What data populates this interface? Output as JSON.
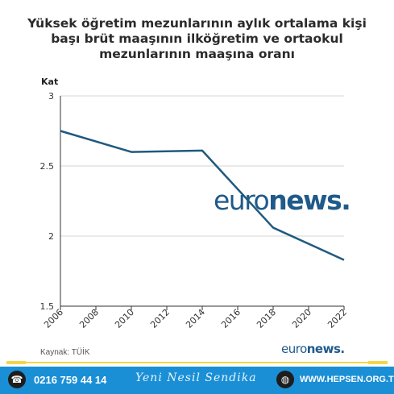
{
  "title_lines": [
    "Yüksek öğretim mezunlarının aylık ortalama kişi",
    "başı brüt maaşının ilköğretim ve ortaokul",
    "mezunlarının maaşına oranı"
  ],
  "source": "Kaynak: TÜİK",
  "watermark": {
    "euro": "euro",
    "news": "news",
    "dot": "."
  },
  "footer": {
    "phone": "0216 759 44 14",
    "slogan": "Yeni Nesil Sendika",
    "website": "WWW.HEPSEN.ORG.TR",
    "phone_icon": "phone-icon",
    "web_icon": "globe-icon"
  },
  "colors": {
    "line": "#1f5a7f",
    "footer_bg": "#1a8fd6",
    "accent": "#f3d64c",
    "brand": "#1f5a8a"
  },
  "chart_data": {
    "type": "line",
    "title": "Yüksek öğretim mezunlarının aylık ortalama kişi başı brüt maaşının ilköğretim ve ortaokul mezunlarının maaşına oranı",
    "ylabel": "Kat",
    "xlabel": "",
    "x": [
      2006,
      2010,
      2014,
      2018,
      2022
    ],
    "values": [
      2.75,
      2.6,
      2.61,
      2.06,
      1.83
    ],
    "xlim": [
      2006,
      2022
    ],
    "ylim": [
      1.5,
      3
    ],
    "xticks": [
      "2006",
      "2008",
      "2010",
      "2012",
      "2014",
      "2016",
      "2018",
      "2020",
      "2022"
    ],
    "yticks": [
      "1.5",
      "2",
      "2.5",
      "3"
    ],
    "grid": "horizontal",
    "legend": "none"
  }
}
